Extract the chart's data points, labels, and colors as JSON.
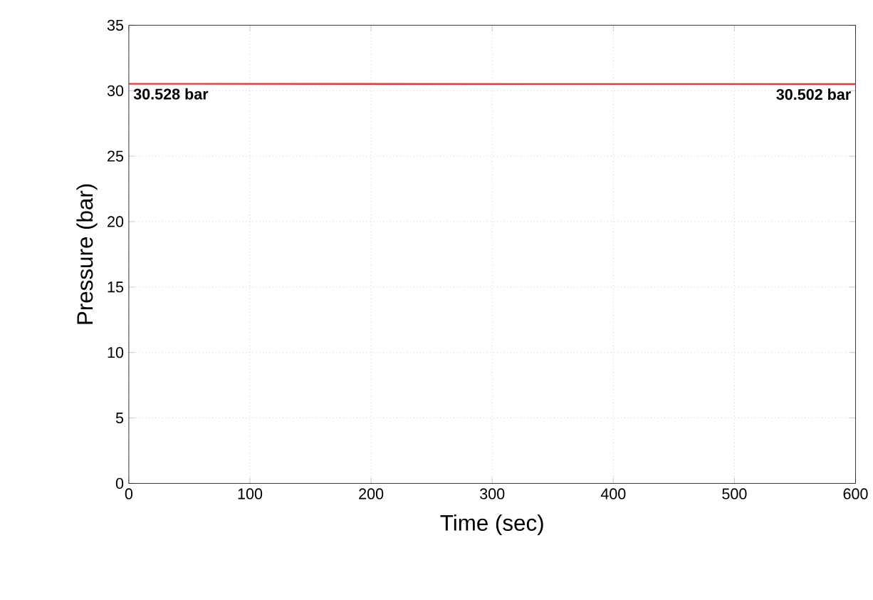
{
  "chart_data": {
    "type": "line",
    "xlabel": "Time (sec)",
    "ylabel": "Pressure (bar)",
    "x": [
      0,
      600
    ],
    "series": [
      {
        "color": "#e8383d",
        "values": [
          30.528,
          30.502
        ]
      }
    ],
    "xlim": [
      0,
      600
    ],
    "xticks": [
      0,
      100,
      200,
      300,
      400,
      500,
      600
    ],
    "ylim": [
      0,
      35
    ],
    "yticks": [
      0,
      5,
      10,
      15,
      20,
      25,
      30,
      35
    ],
    "grid": true,
    "marker": "none",
    "line_style": "solid",
    "annotations": [
      {
        "text": "30.528 bar",
        "x": 0,
        "y": 30.528
      },
      {
        "text": "30.502 bar",
        "x": 600,
        "y": 30.502
      }
    ]
  }
}
